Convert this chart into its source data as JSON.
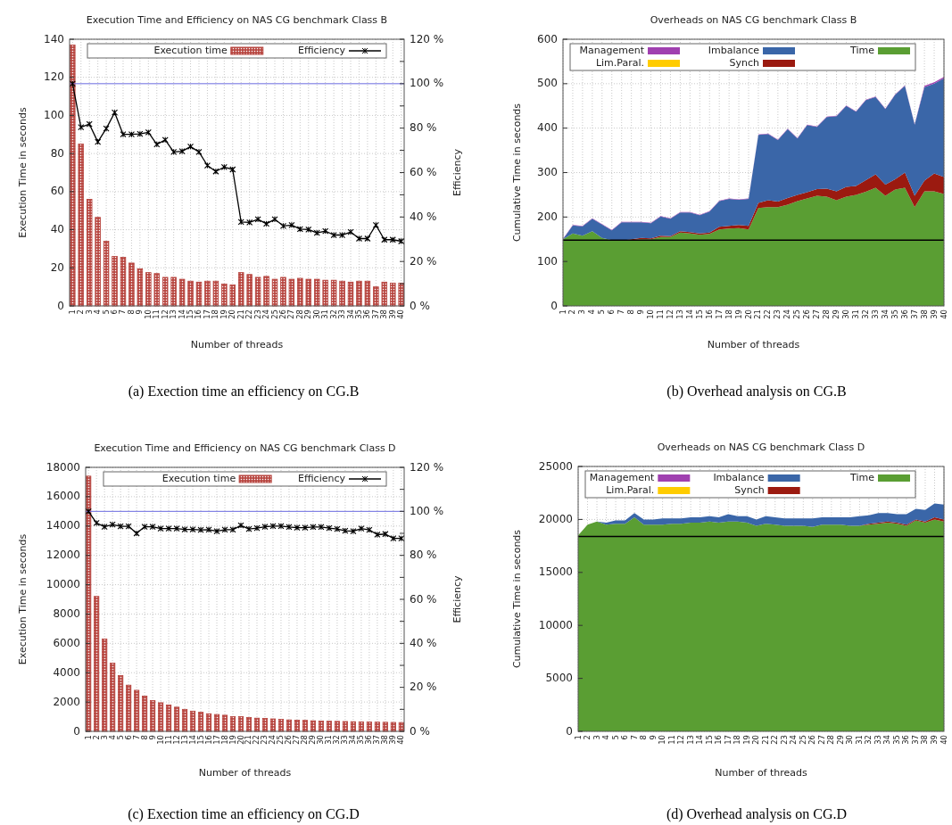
{
  "chart_data": [
    {
      "type": "bar",
      "title": "Execution Time and Efficiency on NAS CG benchmark Class B",
      "xlabel": "Number of threads",
      "ylabel": "Execution Time in seconds",
      "y2label": "Efficiency",
      "categories": [
        "1",
        "2",
        "3",
        "4",
        "5",
        "6",
        "7",
        "8",
        "9",
        "10",
        "11",
        "12",
        "13",
        "14",
        "15",
        "16",
        "17",
        "18",
        "19",
        "20",
        "21",
        "22",
        "23",
        "24",
        "25",
        "26",
        "27",
        "28",
        "29",
        "30",
        "31",
        "32",
        "33",
        "34",
        "35",
        "36",
        "37",
        "38",
        "39",
        "40"
      ],
      "series": [
        {
          "name": "Execution time",
          "type": "bar",
          "color": "#b5403a",
          "values": [
            137,
            85,
            56,
            46.5,
            34,
            26,
            25.5,
            22.5,
            19.5,
            17.5,
            17,
            15,
            15,
            14,
            13,
            12.5,
            13,
            13,
            11.5,
            11,
            17.5,
            16.5,
            15,
            15.5,
            14,
            15,
            14,
            14.5,
            14,
            14,
            13.5,
            13.5,
            13,
            12.5,
            13,
            13,
            10,
            12.5,
            12,
            12
          ]
        },
        {
          "name": "Efficiency",
          "type": "line",
          "axis": "y2",
          "color": "#000000",
          "values": [
            100,
            80.4,
            81.8,
            73.8,
            79.8,
            87,
            77.2,
            77.2,
            77.4,
            78.1,
            72.7,
            74.7,
            69.3,
            69.6,
            71.7,
            69.3,
            63.2,
            60.5,
            62.5,
            61.4,
            37.8,
            37.6,
            39,
            37,
            39,
            36,
            36.4,
            34.6,
            34.4,
            32.9,
            33.7,
            31.9,
            31.9,
            33.3,
            30.3,
            30.3,
            36.4,
            29.8,
            29.8,
            29.1
          ]
        }
      ],
      "ylim": [
        0,
        140
      ],
      "yticks": [
        0,
        20,
        40,
        60,
        80,
        100,
        120,
        140
      ],
      "y2lim": [
        0,
        120
      ],
      "y2ticks": [
        {
          "value": 0,
          "label": "0 %"
        },
        {
          "value": 10,
          "label": null
        },
        {
          "value": 20,
          "label": "20 %"
        },
        {
          "value": 30,
          "label": null
        },
        {
          "value": 40,
          "label": "40 %"
        },
        {
          "value": 50,
          "label": null
        },
        {
          "value": 60,
          "label": "60 %"
        },
        {
          "value": 70,
          "label": null
        },
        {
          "value": 80,
          "label": "80 %"
        },
        {
          "value": 90,
          "label": null
        },
        {
          "value": 100,
          "label": "100 %"
        },
        {
          "value": 110,
          "label": null
        },
        {
          "value": 120,
          "label": "120 %"
        }
      ],
      "ref_lines": [
        {
          "axis": "y2",
          "value": 100,
          "color": "#6a6ae0"
        }
      ],
      "grid": true,
      "legend": "top",
      "marker": "cross",
      "annotations": [
        "(a)  Exection time an efficiency on CG.B"
      ]
    },
    {
      "type": "area",
      "stacked": true,
      "title": "Overheads on NAS CG benchmark Class B",
      "xlabel": "Number of threads",
      "ylabel": "Cumulative Time in seconds",
      "categories": [
        "1",
        "2",
        "3",
        "4",
        "5",
        "6",
        "7",
        "8",
        "9",
        "10",
        "11",
        "12",
        "13",
        "14",
        "15",
        "16",
        "17",
        "18",
        "19",
        "20",
        "21",
        "22",
        "23",
        "24",
        "25",
        "26",
        "27",
        "28",
        "29",
        "30",
        "31",
        "32",
        "33",
        "34",
        "35",
        "36",
        "37",
        "38",
        "39",
        "40"
      ],
      "series": [
        {
          "name": "Time",
          "color": "#5a9e33",
          "values": [
            150,
            163,
            158,
            168,
            153,
            148,
            147,
            148,
            150,
            150,
            155,
            155,
            165,
            163,
            160,
            162,
            172,
            174,
            175,
            172,
            220,
            222,
            222,
            228,
            236,
            242,
            248,
            246,
            238,
            246,
            250,
            257,
            266,
            248,
            262,
            266,
            222,
            258,
            258,
            252
          ]
        },
        {
          "name": "Lim.Paral.",
          "color": "#ffcc00",
          "values": [
            null,
            null,
            null,
            null,
            null,
            null,
            null,
            null,
            null,
            null,
            null,
            null,
            null,
            null,
            null,
            null,
            null,
            null,
            null,
            null,
            null,
            null,
            null,
            null,
            null,
            null,
            null,
            null,
            null,
            null,
            null,
            null,
            null,
            null,
            null,
            null,
            null,
            null,
            null,
            null
          ]
        },
        {
          "name": "Synch",
          "color": "#9b1a10",
          "values": [
            0,
            0,
            0,
            0,
            0,
            0,
            0,
            2,
            3,
            2,
            3,
            2,
            3,
            3,
            3,
            3,
            6,
            6,
            7,
            8,
            12,
            16,
            13,
            15,
            14,
            14,
            15,
            18,
            20,
            22,
            20,
            26,
            30,
            25,
            23,
            34,
            26,
            24,
            40,
            38
          ]
        },
        {
          "name": "Imbalance",
          "color": "#3a66a8",
          "values": [
            0,
            18,
            21,
            28,
            30,
            22,
            41,
            38,
            35,
            34,
            43,
            39,
            42,
            44,
            41,
            47,
            58,
            61,
            57,
            61,
            153,
            149,
            138,
            155,
            127,
            151,
            140,
            161,
            169,
            182,
            167,
            180,
            174,
            170,
            190,
            195,
            160,
            210,
            202,
            222
          ]
        },
        {
          "name": "Management",
          "color": "#a040b0",
          "values": [
            1,
            1,
            1,
            1,
            1,
            1,
            1,
            1,
            1,
            1,
            1,
            1,
            1,
            1,
            1,
            1,
            1,
            1,
            1,
            1,
            1,
            1,
            1,
            1,
            1,
            1,
            1,
            1,
            1,
            1,
            1,
            1,
            1,
            1,
            1,
            1,
            1,
            3,
            3,
            3
          ]
        }
      ],
      "ylim": [
        0,
        600
      ],
      "yticks": [
        0,
        100,
        200,
        300,
        400,
        500,
        600
      ],
      "ref_lines": [
        {
          "axis": "y",
          "value": 148,
          "color": "#000000"
        }
      ],
      "grid": true,
      "legend": "top",
      "annotations": [
        "(b)  Overhead analysis on CG.B"
      ]
    },
    {
      "type": "bar",
      "title": "Execution Time and Efficiency on NAS CG benchmark Class D",
      "xlabel": "Number of threads",
      "ylabel": "Execution Time in seconds",
      "y2label": "Efficiency",
      "categories": [
        "1",
        "2",
        "3",
        "4",
        "5",
        "6",
        "7",
        "8",
        "9",
        "10",
        "11",
        "12",
        "13",
        "14",
        "15",
        "16",
        "17",
        "18",
        "19",
        "20",
        "21",
        "22",
        "23",
        "24",
        "25",
        "26",
        "27",
        "28",
        "29",
        "30",
        "31",
        "32",
        "33",
        "34",
        "35",
        "36",
        "37",
        "38",
        "39",
        "40"
      ],
      "series": [
        {
          "name": "Execution time",
          "type": "bar",
          "color": "#b5403a",
          "values": [
            17400,
            9200,
            6300,
            4650,
            3800,
            3150,
            2800,
            2400,
            2100,
            1950,
            1800,
            1650,
            1500,
            1380,
            1300,
            1200,
            1150,
            1100,
            1000,
            1000,
            950,
            900,
            880,
            850,
            820,
            780,
            760,
            750,
            720,
            700,
            690,
            680,
            670,
            660,
            650,
            640,
            630,
            620,
            610,
            600
          ]
        },
        {
          "name": "Efficiency",
          "type": "line",
          "axis": "y2",
          "color": "#000000",
          "values": [
            100,
            94.7,
            93,
            94,
            93.2,
            93.2,
            90,
            93,
            93,
            92.2,
            92.2,
            92.2,
            91.8,
            91.8,
            91.6,
            91.7,
            91,
            91.7,
            91.7,
            93.6,
            92,
            92.4,
            93,
            93.3,
            93.3,
            92.9,
            92.6,
            92.6,
            92.9,
            92.9,
            92.4,
            92,
            91.2,
            91,
            92.2,
            91.6,
            89.4,
            89.7,
            87.7,
            87.7
          ]
        }
      ],
      "ylim": [
        0,
        18000
      ],
      "yticks": [
        0,
        2000,
        4000,
        6000,
        8000,
        10000,
        12000,
        14000,
        16000,
        18000
      ],
      "y2lim": [
        0,
        120
      ],
      "y2ticks": [
        {
          "value": 0,
          "label": "0 %"
        },
        {
          "value": 10,
          "label": null
        },
        {
          "value": 20,
          "label": "20 %"
        },
        {
          "value": 30,
          "label": null
        },
        {
          "value": 40,
          "label": "40 %"
        },
        {
          "value": 50,
          "label": null
        },
        {
          "value": 60,
          "label": "60 %"
        },
        {
          "value": 70,
          "label": null
        },
        {
          "value": 80,
          "label": "80 %"
        },
        {
          "value": 90,
          "label": null
        },
        {
          "value": 100,
          "label": "100 %"
        },
        {
          "value": 110,
          "label": null
        },
        {
          "value": 120,
          "label": "120 %"
        }
      ],
      "ref_lines": [
        {
          "axis": "y2",
          "value": 100,
          "color": "#6a6ae0"
        }
      ],
      "grid": true,
      "legend": "top",
      "marker": "cross",
      "annotations": [
        "(c)  Exection time an efficiency on CG.D"
      ]
    },
    {
      "type": "area",
      "stacked": true,
      "title": "Overheads on NAS CG benchmark Class D",
      "xlabel": "Number of threads",
      "ylabel": "Cumulative Time in seconds",
      "categories": [
        "1",
        "2",
        "3",
        "4",
        "5",
        "6",
        "7",
        "8",
        "9",
        "10",
        "11",
        "12",
        "13",
        "14",
        "15",
        "16",
        "17",
        "18",
        "19",
        "20",
        "21",
        "22",
        "23",
        "24",
        "25",
        "26",
        "27",
        "28",
        "29",
        "30",
        "31",
        "32",
        "33",
        "34",
        "35",
        "36",
        "37",
        "38",
        "39",
        "40"
      ],
      "series": [
        {
          "name": "Time",
          "color": "#5a9e33",
          "values": [
            18500,
            19500,
            19800,
            19500,
            19600,
            19600,
            20200,
            19500,
            19500,
            19500,
            19600,
            19600,
            19700,
            19700,
            19800,
            19700,
            19800,
            19800,
            19700,
            19400,
            19600,
            19500,
            19400,
            19400,
            19400,
            19300,
            19500,
            19500,
            19500,
            19400,
            19400,
            19500,
            19600,
            19700,
            19600,
            19400,
            19900,
            19700,
            20000,
            19800
          ]
        },
        {
          "name": "Lim.Paral.",
          "color": "#ffcc00",
          "values": [
            null,
            null,
            null,
            null,
            null,
            null,
            null,
            null,
            null,
            null,
            null,
            null,
            null,
            null,
            null,
            null,
            null,
            null,
            null,
            null,
            null,
            null,
            null,
            null,
            null,
            null,
            null,
            null,
            null,
            null,
            null,
            null,
            null,
            null,
            null,
            null,
            null,
            null,
            null,
            null
          ]
        },
        {
          "name": "Synch",
          "color": "#9b1a10",
          "values": [
            0,
            0,
            0,
            0,
            0,
            0,
            0,
            0,
            0,
            0,
            0,
            0,
            0,
            0,
            0,
            0,
            0,
            0,
            0,
            0,
            0,
            0,
            0,
            0,
            0,
            0,
            0,
            0,
            0,
            0,
            0,
            100,
            100,
            100,
            100,
            100,
            100,
            100,
            200,
            200
          ]
        },
        {
          "name": "Imbalance",
          "color": "#3a66a8",
          "values": [
            0,
            0,
            0,
            200,
            300,
            300,
            400,
            500,
            500,
            600,
            500,
            500,
            500,
            500,
            500,
            500,
            700,
            500,
            600,
            600,
            700,
            700,
            700,
            700,
            700,
            800,
            700,
            700,
            700,
            800,
            900,
            800,
            900,
            800,
            800,
            1000,
            1000,
            1100,
            1300,
            1400
          ]
        },
        {
          "name": "Management",
          "color": "#a040b0",
          "values": [
            null,
            null,
            null,
            null,
            null,
            null,
            null,
            null,
            null,
            null,
            null,
            null,
            null,
            null,
            null,
            null,
            null,
            null,
            null,
            null,
            null,
            null,
            null,
            null,
            null,
            null,
            null,
            null,
            null,
            null,
            null,
            null,
            null,
            null,
            null,
            null,
            null,
            null,
            null,
            null
          ]
        }
      ],
      "ylim": [
        0,
        25000
      ],
      "yticks": [
        0,
        5000,
        10000,
        15000,
        20000,
        25000
      ],
      "ref_lines": [
        {
          "axis": "y",
          "value": 18400,
          "color": "#000000"
        }
      ],
      "grid": true,
      "legend": "top",
      "annotations": [
        "(d)  Overhead analysis on CG.D"
      ]
    }
  ]
}
